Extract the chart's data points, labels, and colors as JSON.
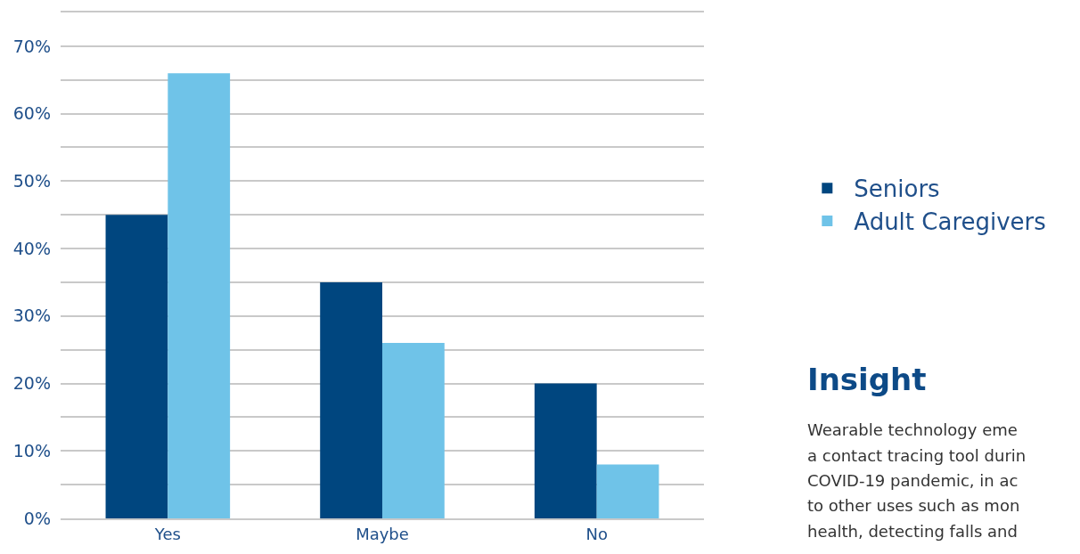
{
  "chart_data": {
    "type": "bar",
    "categories": [
      "Yes",
      "Maybe",
      "No"
    ],
    "series": [
      {
        "name": "Seniors",
        "color": "#00467f",
        "values": [
          45,
          35,
          20
        ]
      },
      {
        "name": "Adult Caregivers",
        "color": "#6fc3e8",
        "values": [
          66,
          26,
          8
        ]
      }
    ],
    "ylim": [
      0,
      75
    ],
    "yticks": [
      {
        "value": 0,
        "label": "0%"
      },
      {
        "value": 5,
        "label": null
      },
      {
        "value": 10,
        "label": "10%"
      },
      {
        "value": 15,
        "label": null
      },
      {
        "value": 20,
        "label": "20%"
      },
      {
        "value": 25,
        "label": null
      },
      {
        "value": 30,
        "label": "30%"
      },
      {
        "value": 35,
        "label": null
      },
      {
        "value": 40,
        "label": "40%"
      },
      {
        "value": 45,
        "label": null
      },
      {
        "value": 50,
        "label": "50%"
      },
      {
        "value": 55,
        "label": null
      },
      {
        "value": 60,
        "label": "60%"
      },
      {
        "value": 65,
        "label": null
      },
      {
        "value": 70,
        "label": "70%"
      },
      {
        "value": 75,
        "label": null
      }
    ],
    "grid": "y",
    "legend": "right",
    "annotations": [
      "Insight",
      "Wearable technology eme",
      "a contact tracing tool durin",
      "COVID-19 pandemic, in ac",
      "to other uses such as mon",
      "health, detecting falls and"
    ]
  }
}
